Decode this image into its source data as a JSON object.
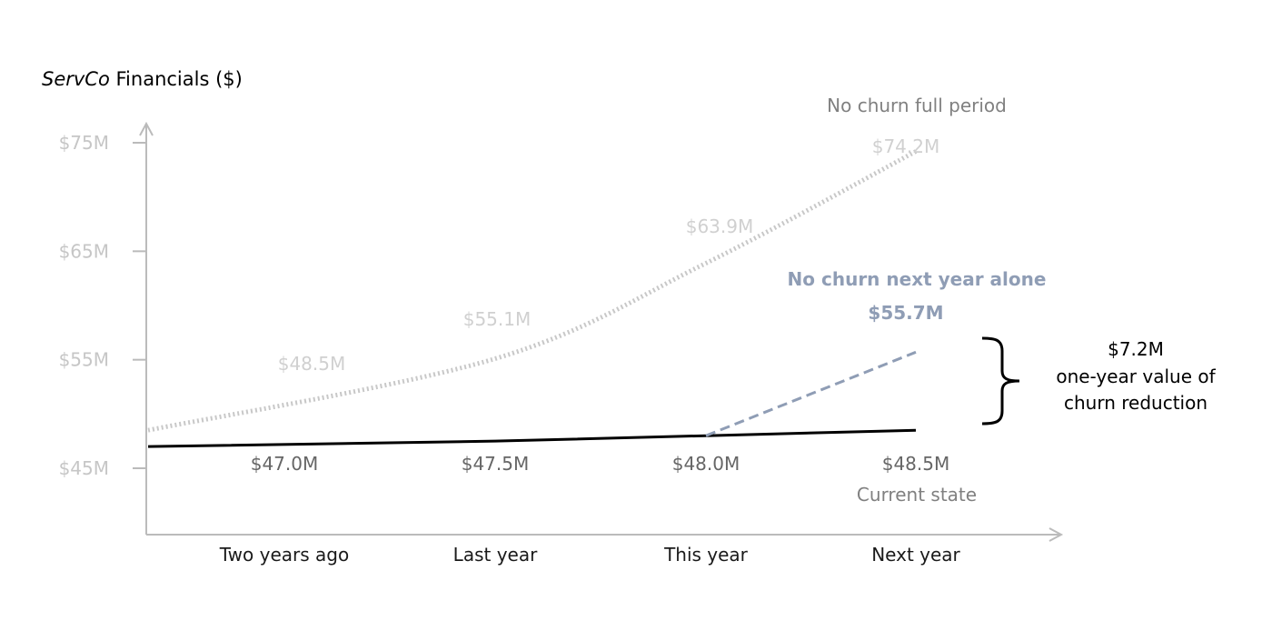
{
  "chart_data": {
    "type": "line",
    "title": "ServCo Financials ($)",
    "title_parts": {
      "brand": "ServCo",
      "rest": " Financials ($)"
    },
    "categories": [
      "Two years ago",
      "Last year",
      "This year",
      "Next year"
    ],
    "y_ticks": [
      {
        "value": 45,
        "label": "$45M"
      },
      {
        "value": 55,
        "label": "$55M"
      },
      {
        "value": 65,
        "label": "$65M"
      },
      {
        "value": 75,
        "label": "$75M"
      }
    ],
    "ylim": [
      39,
      75.5
    ],
    "grid": false,
    "series": [
      {
        "name": "Current state",
        "color": "#000000",
        "style": "solid",
        "points": [
          {
            "x": "Two years ago",
            "y": 47.0,
            "label": "$47.0M"
          },
          {
            "x": "Last year",
            "y": 47.5,
            "label": "$47.5M"
          },
          {
            "x": "This year",
            "y": 48.0,
            "label": "$48.0M"
          },
          {
            "x": "Next year",
            "y": 48.5,
            "label": "$48.5M"
          }
        ]
      },
      {
        "name": "No churn full period",
        "color": "#c8c8c8",
        "style": "dotted",
        "points": [
          {
            "x": "Two years ago",
            "y": 48.5,
            "label": "$48.5M"
          },
          {
            "x": "Last year",
            "y": 55.1,
            "label": "$55.1M"
          },
          {
            "x": "This year",
            "y": 63.9,
            "label": "$63.9M"
          },
          {
            "x": "Next year",
            "y": 74.2,
            "label": "$74.2M"
          }
        ]
      },
      {
        "name": "No churn next year alone",
        "color": "#8f9db5",
        "style": "dashed",
        "points": [
          {
            "x": "This year",
            "y": 48.0
          },
          {
            "x": "Next year",
            "y": 55.7,
            "label": "$55.7M"
          }
        ]
      }
    ],
    "annotation": {
      "value": "$7.2M",
      "line1": "one-year value of",
      "line2": "churn reduction"
    }
  }
}
